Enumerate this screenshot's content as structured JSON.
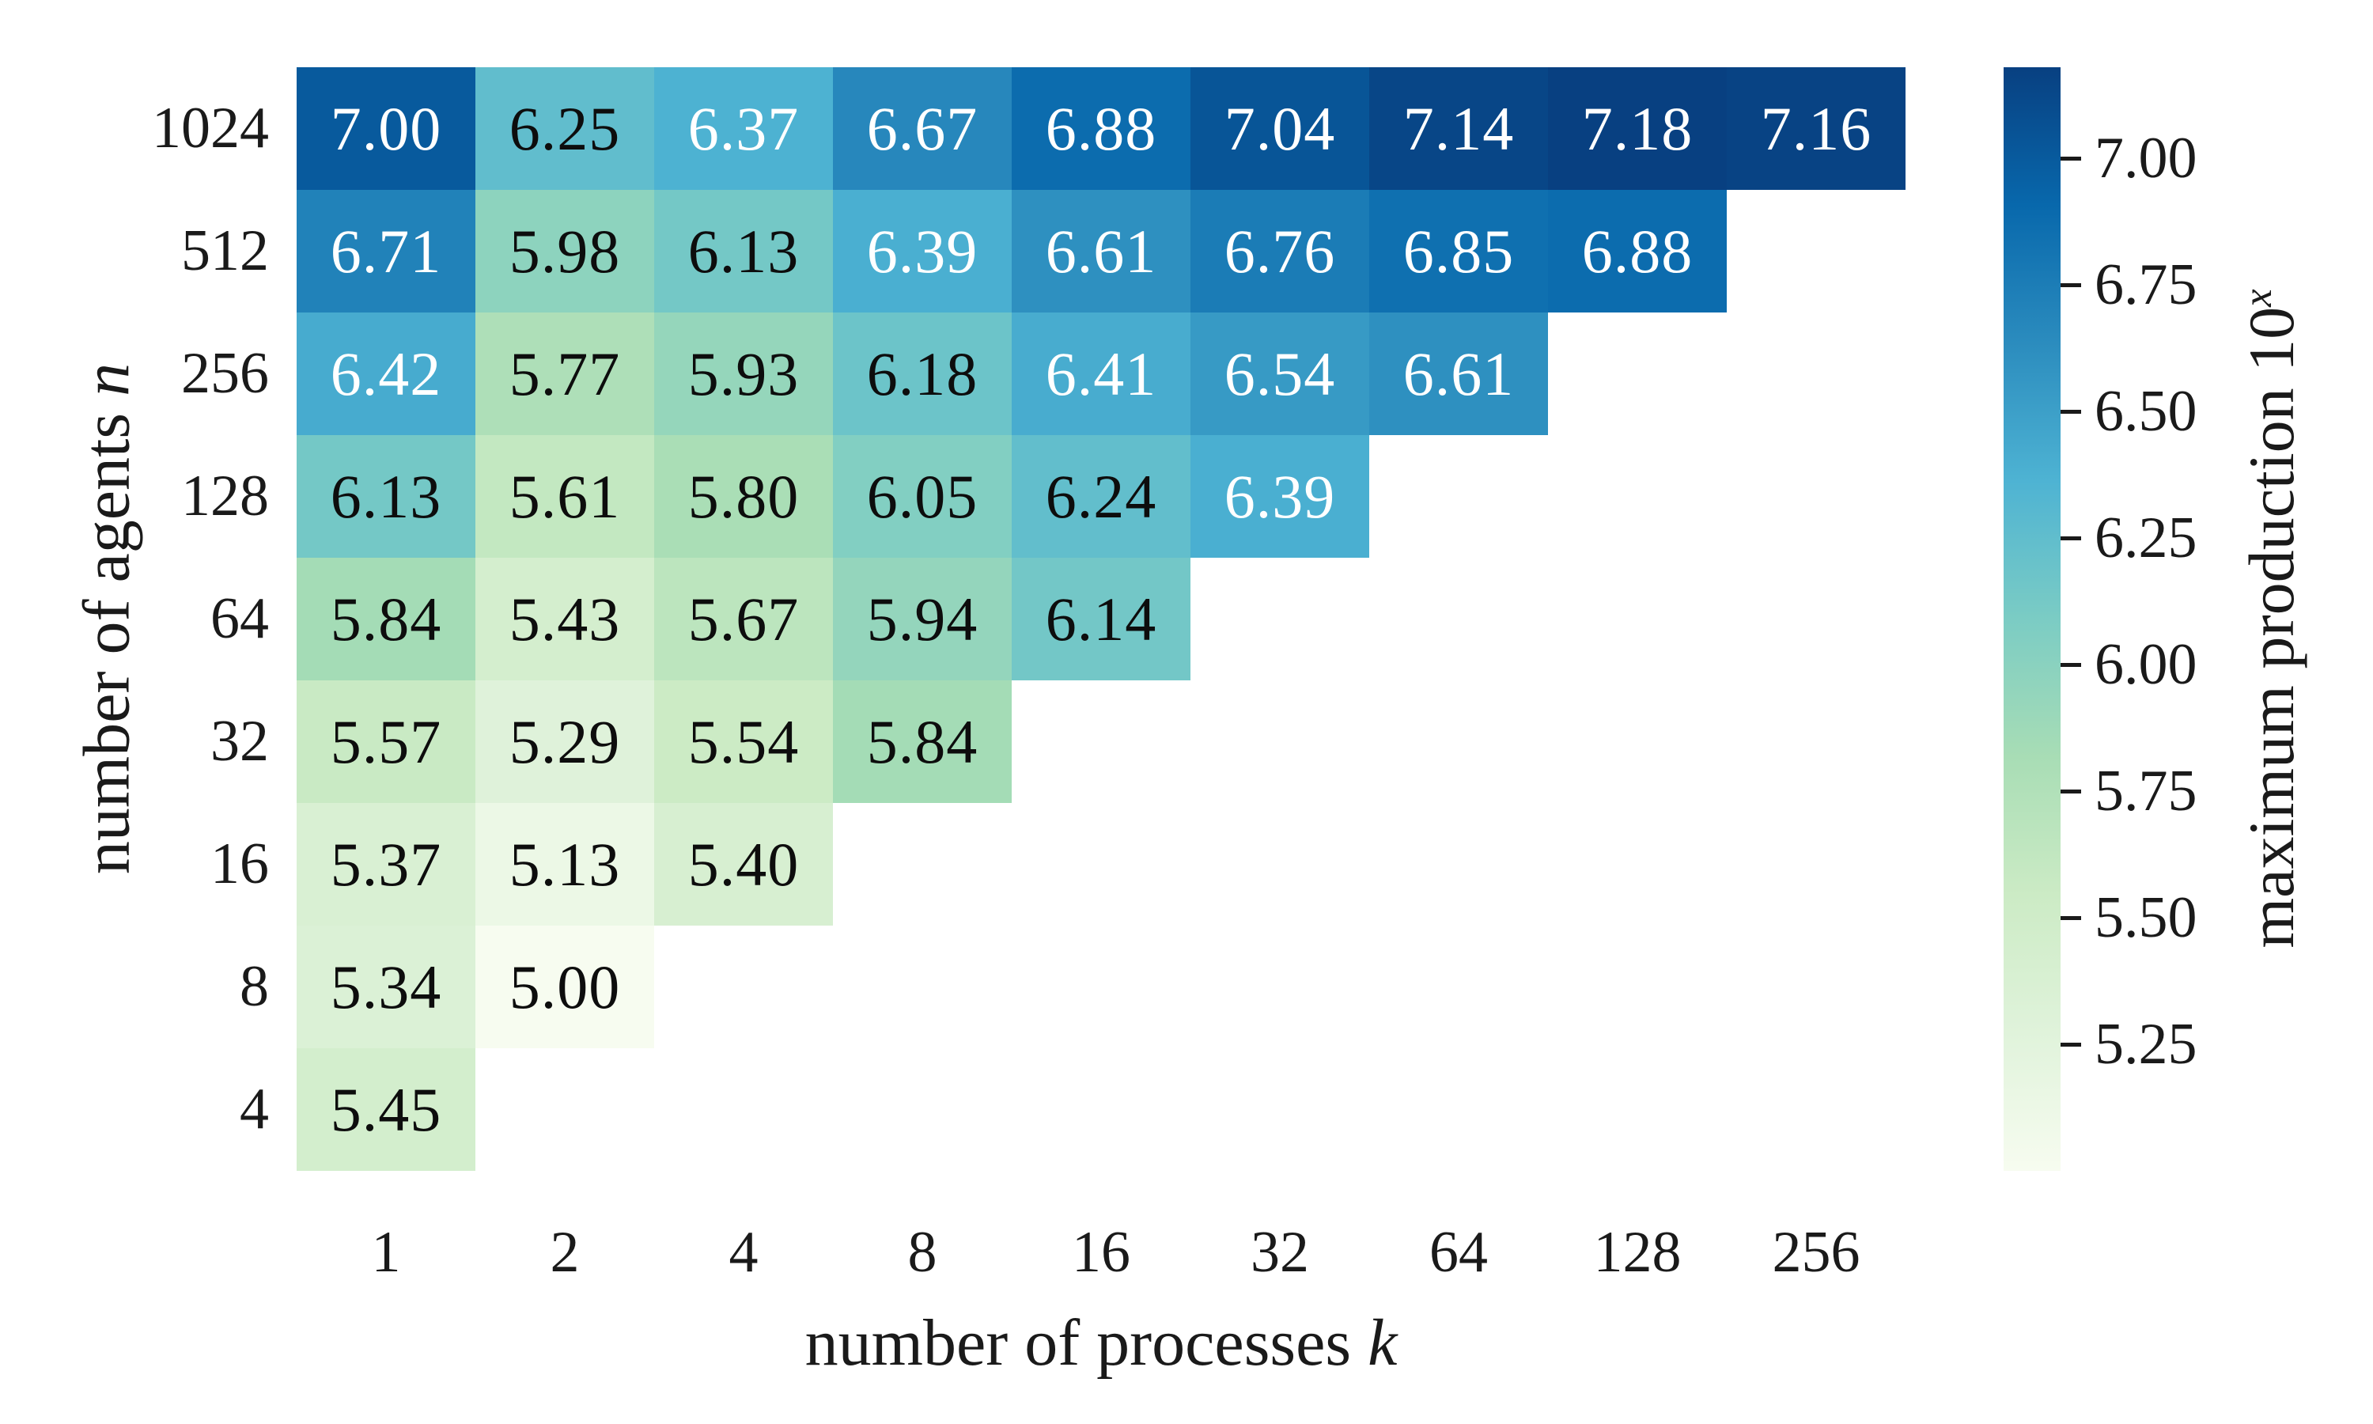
{
  "chart_data": {
    "type": "heatmap",
    "title": "",
    "colormap": "GnBu",
    "vmin": 5.0,
    "vmax": 7.18,
    "xlabel": {
      "text": "number of processes ",
      "var": "k"
    },
    "ylabel": {
      "text": "number of agents ",
      "var": "n"
    },
    "x_categories": [
      "1",
      "2",
      "4",
      "8",
      "16",
      "32",
      "64",
      "128",
      "256"
    ],
    "y_categories": [
      "1024",
      "512",
      "256",
      "128",
      "64",
      "32",
      "16",
      "8",
      "4"
    ],
    "text_colors": {
      "dark": "#0d0d0d",
      "light": "#ffffff"
    },
    "rows": [
      {
        "y": "1024",
        "cells": [
          {
            "v": "7.00",
            "bg": "#085a9d",
            "fg": "#ffffff"
          },
          {
            "v": "6.25",
            "bg": "#61bdcd",
            "fg": "#0d0d0d"
          },
          {
            "v": "6.37",
            "bg": "#4db2d2",
            "fg": "#ffffff"
          },
          {
            "v": "6.67",
            "bg": "#2787bc",
            "fg": "#ffffff"
          },
          {
            "v": "6.88",
            "bg": "#0c6cae",
            "fg": "#ffffff"
          },
          {
            "v": "7.04",
            "bg": "#085597",
            "fg": "#ffffff"
          },
          {
            "v": "7.14",
            "bg": "#084687",
            "fg": "#ffffff"
          },
          {
            "v": "7.18",
            "bg": "#084081",
            "fg": "#ffffff"
          },
          {
            "v": "7.16",
            "bg": "#084384",
            "fg": "#ffffff"
          }
        ]
      },
      {
        "y": "512",
        "cells": [
          {
            "v": "6.71",
            "bg": "#2182b9",
            "fg": "#ffffff"
          },
          {
            "v": "5.98",
            "bg": "#8dd3be",
            "fg": "#0d0d0d"
          },
          {
            "v": "6.13",
            "bg": "#74c8c6",
            "fg": "#0d0d0d"
          },
          {
            "v": "6.39",
            "bg": "#4aafd1",
            "fg": "#ffffff"
          },
          {
            "v": "6.61",
            "bg": "#2e90c0",
            "fg": "#ffffff"
          },
          {
            "v": "6.76",
            "bg": "#1b7cb6",
            "fg": "#ffffff"
          },
          {
            "v": "6.85",
            "bg": "#0f70b0",
            "fg": "#ffffff"
          },
          {
            "v": "6.88",
            "bg": "#0c6cae",
            "fg": "#ffffff"
          }
        ]
      },
      {
        "y": "256",
        "cells": [
          {
            "v": "6.42",
            "bg": "#47abcf",
            "fg": "#ffffff"
          },
          {
            "v": "5.77",
            "bg": "#aedfb8",
            "fg": "#0d0d0d"
          },
          {
            "v": "5.93",
            "bg": "#95d6bb",
            "fg": "#0d0d0d"
          },
          {
            "v": "6.18",
            "bg": "#6cc4c9",
            "fg": "#0d0d0d"
          },
          {
            "v": "6.41",
            "bg": "#48accf",
            "fg": "#ffffff"
          },
          {
            "v": "6.54",
            "bg": "#379ac5",
            "fg": "#ffffff"
          },
          {
            "v": "6.61",
            "bg": "#2e90c0",
            "fg": "#ffffff"
          }
        ]
      },
      {
        "y": "128",
        "cells": [
          {
            "v": "6.13",
            "bg": "#74c8c6",
            "fg": "#0d0d0d"
          },
          {
            "v": "5.61",
            "bg": "#c3e8c1",
            "fg": "#0d0d0d"
          },
          {
            "v": "5.80",
            "bg": "#aadeb6",
            "fg": "#0d0d0d"
          },
          {
            "v": "6.05",
            "bg": "#82cfc2",
            "fg": "#0d0d0d"
          },
          {
            "v": "6.24",
            "bg": "#62becc",
            "fg": "#0d0d0d"
          },
          {
            "v": "6.39",
            "bg": "#4aafd1",
            "fg": "#ffffff"
          }
        ]
      },
      {
        "y": "64",
        "cells": [
          {
            "v": "5.84",
            "bg": "#a4dcb6",
            "fg": "#0d0d0d"
          },
          {
            "v": "5.43",
            "bg": "#d4eece",
            "fg": "#0d0d0d"
          },
          {
            "v": "5.67",
            "bg": "#bce5be",
            "fg": "#0d0d0d"
          },
          {
            "v": "5.94",
            "bg": "#94d5bc",
            "fg": "#0d0d0d"
          },
          {
            "v": "6.14",
            "bg": "#73c7c7",
            "fg": "#0d0d0d"
          }
        ]
      },
      {
        "y": "32",
        "cells": [
          {
            "v": "5.57",
            "bg": "#c9eac4",
            "fg": "#0d0d0d"
          },
          {
            "v": "5.29",
            "bg": "#dff2da",
            "fg": "#0d0d0d"
          },
          {
            "v": "5.54",
            "bg": "#ccebc5",
            "fg": "#0d0d0d"
          },
          {
            "v": "5.84",
            "bg": "#a4dcb6",
            "fg": "#0d0d0d"
          }
        ]
      },
      {
        "y": "16",
        "cells": [
          {
            "v": "5.37",
            "bg": "#d9f0d3",
            "fg": "#0d0d0d"
          },
          {
            "v": "5.13",
            "bg": "#ecf8e6",
            "fg": "#0d0d0d"
          },
          {
            "v": "5.40",
            "bg": "#d7efd1",
            "fg": "#0d0d0d"
          }
        ]
      },
      {
        "y": "8",
        "cells": [
          {
            "v": "5.34",
            "bg": "#dbf1d6",
            "fg": "#0d0d0d"
          },
          {
            "v": "5.00",
            "bg": "#f7fcf0",
            "fg": "#0d0d0d"
          }
        ]
      },
      {
        "y": "4",
        "cells": [
          {
            "v": "5.45",
            "bg": "#d3eecd",
            "fg": "#0d0d0d"
          }
        ]
      }
    ],
    "colorbar": {
      "label": {
        "text": "maximum production 10",
        "sup_var": "x"
      },
      "ticks": [
        "7.00",
        "6.75",
        "6.50",
        "6.25",
        "6.00",
        "5.75",
        "5.50",
        "5.25"
      ],
      "gradient_stops_top_to_bottom": [
        "#084081",
        "#0868ac",
        "#2b8cbe",
        "#4eb3d3",
        "#7bccc4",
        "#a8ddb5",
        "#ccebc5",
        "#e0f3db",
        "#f7fcf0"
      ]
    }
  }
}
